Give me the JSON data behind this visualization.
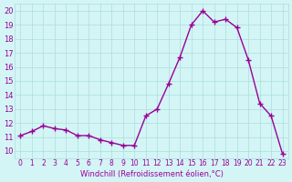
{
  "x": [
    0,
    1,
    2,
    3,
    4,
    5,
    6,
    7,
    8,
    9,
    10,
    11,
    12,
    13,
    14,
    15,
    16,
    17,
    18,
    19,
    20,
    21,
    22,
    23
  ],
  "y": [
    11.1,
    11.4,
    11.8,
    11.6,
    11.5,
    11.1,
    11.1,
    10.8,
    10.6,
    10.4,
    10.4,
    12.5,
    13.0,
    14.8,
    16.7,
    19.0,
    20.0,
    19.2,
    19.4,
    18.8,
    16.5,
    13.4,
    12.5,
    9.8
  ],
  "x_ticks": [
    0,
    1,
    2,
    3,
    4,
    5,
    6,
    7,
    8,
    9,
    10,
    11,
    12,
    13,
    14,
    15,
    16,
    17,
    18,
    19,
    20,
    21,
    22,
    23
  ],
  "y_ticks": [
    10,
    11,
    12,
    13,
    14,
    15,
    16,
    17,
    18,
    19,
    20
  ],
  "ylim": [
    9.5,
    20.5
  ],
  "xlim": [
    -0.5,
    23.5
  ],
  "line_color": "#990099",
  "marker": "+",
  "bg_color": "#d4f5f5",
  "grid_color": "#aadddd",
  "xlabel": "Windchill (Refroidissement éolien,°C)",
  "xlabel_color": "#990099"
}
